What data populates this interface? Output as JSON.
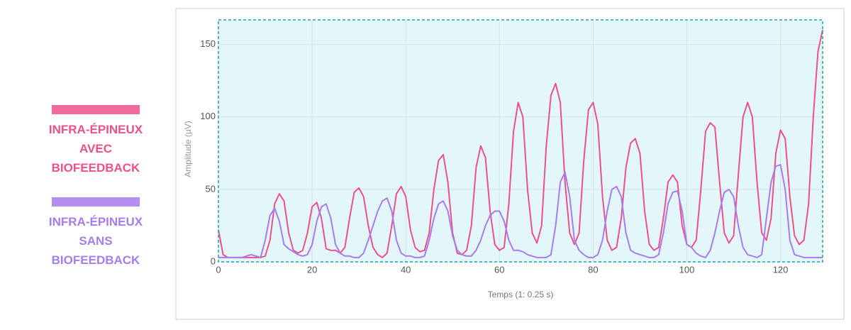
{
  "chart_data": {
    "type": "line",
    "x_label": "Temps (1: 0.25 s)",
    "y_label": "Amplitude (µV)",
    "xlim": [
      0,
      129
    ],
    "ylim": [
      0,
      167
    ],
    "xticks": [
      0,
      20,
      40,
      60,
      80,
      100,
      120
    ],
    "yticks": [
      0,
      50,
      100,
      150
    ],
    "grid": true,
    "legend": "left",
    "x": [
      0,
      1,
      2,
      3,
      4,
      5,
      6,
      7,
      8,
      9,
      10,
      11,
      12,
      13,
      14,
      15,
      16,
      17,
      18,
      19,
      20,
      21,
      22,
      23,
      24,
      25,
      26,
      27,
      28,
      29,
      30,
      31,
      32,
      33,
      34,
      35,
      36,
      37,
      38,
      39,
      40,
      41,
      42,
      43,
      44,
      45,
      46,
      47,
      48,
      49,
      50,
      51,
      52,
      53,
      54,
      55,
      56,
      57,
      58,
      59,
      60,
      61,
      62,
      63,
      64,
      65,
      66,
      67,
      68,
      69,
      70,
      71,
      72,
      73,
      74,
      75,
      76,
      77,
      78,
      79,
      80,
      81,
      82,
      83,
      84,
      85,
      86,
      87,
      88,
      89,
      90,
      91,
      92,
      93,
      94,
      95,
      96,
      97,
      98,
      99,
      100,
      101,
      102,
      103,
      104,
      105,
      106,
      107,
      108,
      109,
      110,
      111,
      112,
      113,
      114,
      115,
      116,
      117,
      118,
      119,
      120,
      121,
      122,
      123,
      124,
      125,
      126,
      127,
      128,
      129
    ],
    "series": [
      {
        "name": "INFRA-ÉPINEUX AVEC BIOFEEDBACK",
        "color": "#f0508a",
        "values": [
          22,
          5,
          3,
          3,
          3,
          3,
          3,
          3,
          3,
          3,
          4,
          15,
          40,
          47,
          42,
          20,
          8,
          6,
          8,
          20,
          38,
          41,
          30,
          9,
          8,
          8,
          6,
          10,
          30,
          48,
          51,
          45,
          25,
          10,
          5,
          3,
          6,
          25,
          47,
          52,
          45,
          22,
          10,
          7,
          8,
          20,
          50,
          70,
          74,
          55,
          20,
          6,
          5,
          8,
          25,
          65,
          80,
          72,
          35,
          12,
          8,
          10,
          40,
          90,
          110,
          100,
          50,
          20,
          13,
          25,
          80,
          115,
          123,
          110,
          55,
          20,
          12,
          20,
          70,
          105,
          110,
          95,
          45,
          15,
          8,
          10,
          30,
          65,
          82,
          85,
          75,
          35,
          12,
          8,
          10,
          30,
          55,
          60,
          55,
          25,
          12,
          10,
          15,
          50,
          90,
          96,
          93,
          55,
          20,
          13,
          18,
          60,
          100,
          110,
          100,
          55,
          20,
          15,
          30,
          75,
          91,
          85,
          45,
          18,
          12,
          15,
          40,
          100,
          145,
          160
        ]
      },
      {
        "name": "INFRA-ÉPINEUX SANS BIOFEEDBACK",
        "color": "#a77cf0",
        "values": [
          3,
          3,
          3,
          3,
          3,
          3,
          4,
          5,
          4,
          3,
          15,
          32,
          37,
          28,
          12,
          9,
          7,
          5,
          4,
          5,
          12,
          28,
          38,
          40,
          30,
          12,
          6,
          4,
          4,
          3,
          3,
          6,
          15,
          25,
          35,
          42,
          44,
          35,
          15,
          6,
          4,
          4,
          3,
          3,
          4,
          15,
          30,
          40,
          42,
          35,
          18,
          8,
          5,
          4,
          4,
          8,
          15,
          25,
          32,
          35,
          35,
          28,
          15,
          8,
          8,
          7,
          5,
          4,
          3,
          3,
          3,
          5,
          25,
          55,
          62,
          45,
          15,
          8,
          5,
          3,
          3,
          5,
          15,
          35,
          50,
          52,
          45,
          20,
          8,
          6,
          5,
          4,
          3,
          3,
          5,
          20,
          40,
          48,
          49,
          35,
          12,
          10,
          6,
          4,
          3,
          8,
          20,
          35,
          48,
          50,
          45,
          25,
          10,
          5,
          4,
          3,
          5,
          30,
          55,
          66,
          67,
          50,
          15,
          5,
          4,
          3,
          3,
          3,
          3,
          3
        ]
      }
    ]
  }
}
